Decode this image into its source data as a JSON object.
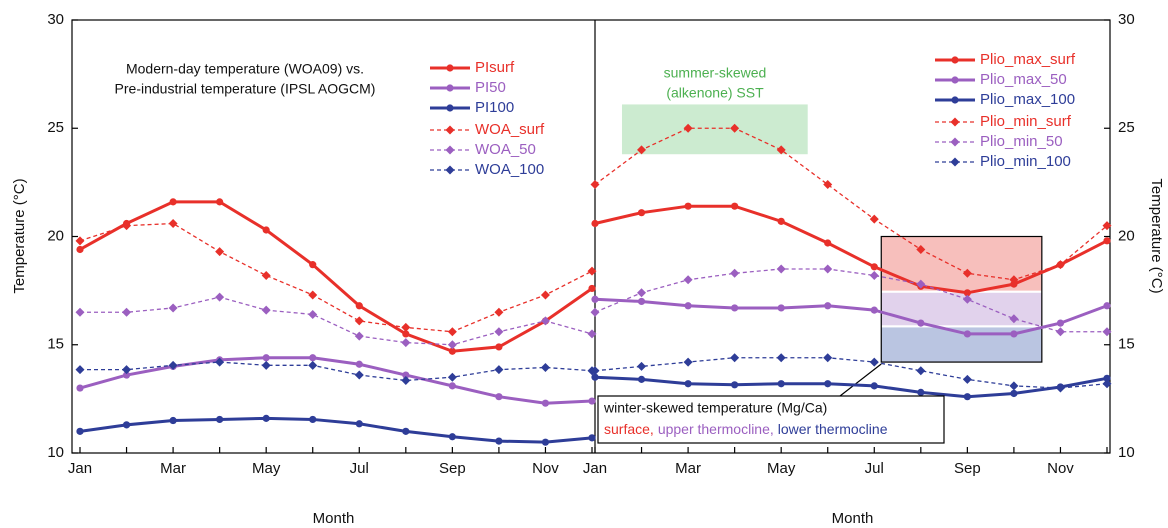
{
  "chart_data": [
    {
      "type": "line",
      "annotation": [
        "Modern-day temperature (WOA09) vs.",
        "Pre-industrial temperature (IPSL AOGCM)"
      ],
      "xlabel": "Month",
      "ylabel": "Temperature (°C)",
      "categories": [
        "Jan",
        null,
        "Mar",
        null,
        "May",
        null,
        "Jul",
        null,
        "Sep",
        null,
        "Nov",
        null
      ],
      "ylim": [
        10,
        30
      ],
      "yticks": [
        10,
        15,
        20,
        25,
        30
      ],
      "grid": false,
      "ytick_side": "left",
      "series": [
        {
          "name": "PIsurf",
          "color": "#e8302a",
          "style": "solid",
          "marker": "circle",
          "values": [
            19.4,
            20.6,
            21.6,
            21.6,
            20.3,
            18.7,
            16.8,
            15.5,
            14.7,
            14.9,
            16.1,
            17.6
          ]
        },
        {
          "name": "PI50",
          "color": "#9b5fc0",
          "style": "solid",
          "marker": "circle",
          "values": [
            13.0,
            13.6,
            14.0,
            14.3,
            14.4,
            14.4,
            14.1,
            13.6,
            13.1,
            12.6,
            12.3,
            12.4
          ]
        },
        {
          "name": "PI100",
          "color": "#2e3d98",
          "style": "solid",
          "marker": "circle",
          "values": [
            11.0,
            11.3,
            11.5,
            11.55,
            11.6,
            11.55,
            11.35,
            11.0,
            10.75,
            10.55,
            10.5,
            10.7
          ]
        },
        {
          "name": "WOA_surf",
          "color": "#e8302a",
          "style": "dashed",
          "marker": "diamond",
          "values": [
            19.8,
            20.5,
            20.6,
            19.3,
            18.2,
            17.3,
            16.1,
            15.8,
            15.6,
            16.5,
            17.3,
            18.4
          ]
        },
        {
          "name": "WOA_50",
          "color": "#9b5fc0",
          "style": "dashed",
          "marker": "diamond",
          "values": [
            16.5,
            16.5,
            16.7,
            17.2,
            16.6,
            16.4,
            15.4,
            15.1,
            15.0,
            15.6,
            16.1,
            15.5
          ]
        },
        {
          "name": "WOA_100",
          "color": "#2e3d98",
          "style": "dashed",
          "marker": "diamond",
          "values": [
            13.85,
            13.85,
            14.05,
            14.2,
            14.05,
            14.05,
            13.6,
            13.35,
            13.5,
            13.85,
            13.95,
            13.8
          ]
        }
      ]
    },
    {
      "type": "line",
      "summer_note": [
        "summer-skewed",
        "(alkenone) SST"
      ],
      "winter_note": "winter-skewed temperature (Mg/Ca)",
      "winter_parts": [
        {
          "text": "surface,",
          "color": "#e8302a"
        },
        {
          "text": "upper thermocline,",
          "color": "#9b5fc0"
        },
        {
          "text": "lower thermocline",
          "color": "#2e3d98"
        }
      ],
      "xlabel": "Month",
      "ylabel": "Temperature (°C)",
      "categories": [
        "Jan",
        null,
        "Mar",
        null,
        "May",
        null,
        "Jul",
        null,
        "Sep",
        null,
        "Nov",
        null
      ],
      "ylim": [
        10,
        30
      ],
      "yticks": [
        10,
        15,
        20,
        25,
        30
      ],
      "grid": false,
      "ytick_side": "right",
      "series": [
        {
          "name": "Plio_max_surf",
          "color": "#e8302a",
          "style": "solid",
          "marker": "circle",
          "values": [
            20.6,
            21.1,
            21.4,
            21.4,
            20.7,
            19.7,
            18.6,
            17.7,
            17.4,
            17.8,
            18.7,
            19.8
          ]
        },
        {
          "name": "Plio_max_50",
          "color": "#9b5fc0",
          "style": "solid",
          "marker": "circle",
          "values": [
            17.1,
            17.0,
            16.8,
            16.7,
            16.7,
            16.8,
            16.6,
            16.0,
            15.5,
            15.5,
            16.0,
            16.8
          ]
        },
        {
          "name": "Plio_max_100",
          "color": "#2e3d98",
          "style": "solid",
          "marker": "circle",
          "values": [
            13.5,
            13.4,
            13.2,
            13.15,
            13.2,
            13.2,
            13.1,
            12.8,
            12.6,
            12.75,
            13.05,
            13.45
          ]
        },
        {
          "name": "Plio_min_surf",
          "color": "#e8302a",
          "style": "dashed",
          "marker": "diamond",
          "values": [
            22.4,
            24.0,
            25.0,
            25.0,
            24.0,
            22.4,
            20.8,
            19.4,
            18.3,
            18.0,
            18.7,
            20.5
          ]
        },
        {
          "name": "Plio_min_50",
          "color": "#9b5fc0",
          "style": "dashed",
          "marker": "diamond",
          "values": [
            16.5,
            17.4,
            18.0,
            18.3,
            18.5,
            18.5,
            18.2,
            17.8,
            17.1,
            16.2,
            15.6,
            15.6
          ]
        },
        {
          "name": "Plio_min_100",
          "color": "#2e3d98",
          "style": "dashed",
          "marker": "diamond",
          "values": [
            13.8,
            14.0,
            14.2,
            14.4,
            14.4,
            14.4,
            14.2,
            13.8,
            13.4,
            13.1,
            13.0,
            13.2
          ]
        }
      ]
    }
  ]
}
